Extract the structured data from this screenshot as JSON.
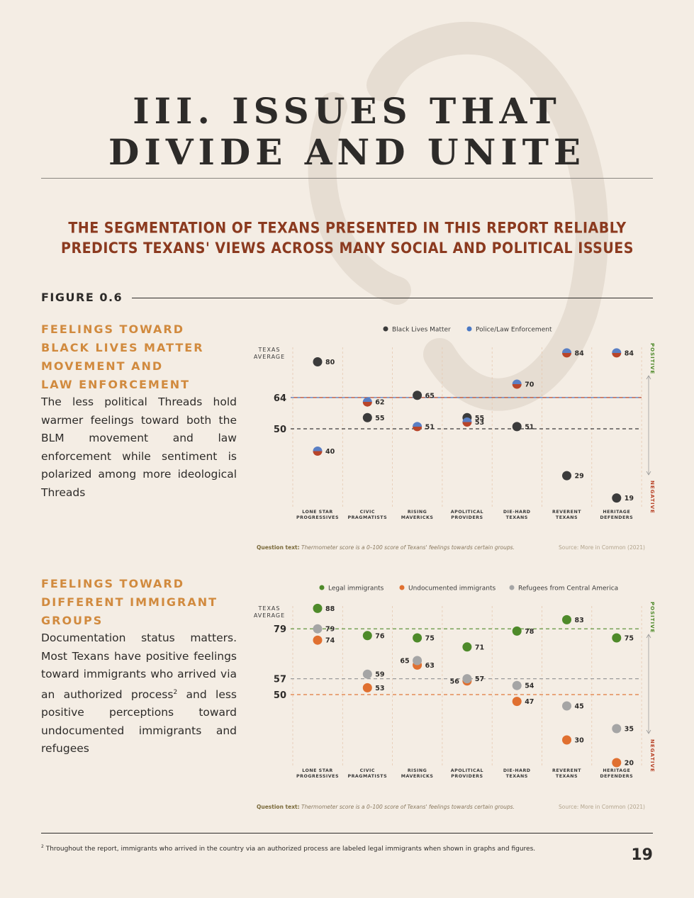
{
  "page": {
    "title_line1": "III. ISSUES THAT",
    "title_line2": "DIVIDE AND UNITE",
    "subtitle": "THE SEGMENTATION OF TEXANS PRESENTED IN THIS REPORT RELIABLY PREDICTS TEXANS' VIEWS ACROSS MANY SOCIAL AND POLITICAL ISSUES",
    "figure_label": "FIGURE 0.6",
    "footnote_marker": "2",
    "footnote": "Throughout the report, immigrants who arrived in the country via an authorized process are labeled legal immigrants when shown in graphs and figures.",
    "page_number": "19"
  },
  "section1": {
    "heading_lines": [
      "FEELINGS TOWARD",
      "BLACK LIVES MATTER",
      "MOVEMENT AND",
      "LAW ENFORCEMENT"
    ],
    "body": "The less political Threads hold warmer feelings toward both the BLM movement and law enforcement while sentiment is polarized among more ideological Threads",
    "question_label": "Question text:",
    "question_text": "Thermometer score is a 0–100 score of Texans' feelings towards certain groups.",
    "source": "Source: More in Common (2021)"
  },
  "section2": {
    "heading_lines": [
      "FEELINGS TOWARD",
      "DIFFERENT IMMIGRANT",
      "GROUPS"
    ],
    "body_part1": "Documentation status matters. Most Texans have positive feelings toward immigrants who arrived via an authorized process",
    "body_sup": "2",
    "body_part2": " and less positive perceptions toward undocumented immigrants and refugees",
    "question_label": "Question text:",
    "question_text": "Thermometer score is a 0–100 score of Texans' feelings towards certain groups.",
    "source": "Source: More in Common (2021)"
  },
  "chart_data": [
    {
      "type": "scatter",
      "title": "",
      "y_axis_caption": [
        "TEXAS",
        "AVERAGE"
      ],
      "ylim": [
        0,
        100
      ],
      "grid": false,
      "legend_position": "top",
      "direction_labels": {
        "positive": "POSITIVE",
        "negative": "NEGATIVE"
      },
      "categories": [
        [
          "LONE STAR",
          "PROGRESSIVES"
        ],
        [
          "CIVIC",
          "PRAGMATISTS"
        ],
        [
          "RISING",
          "MAVERICKS"
        ],
        [
          "APOLITICAL",
          "PROVIDERS"
        ],
        [
          "DIE-HARD",
          "TEXANS"
        ],
        [
          "REVERENT",
          "TEXANS"
        ],
        [
          "HERITAGE",
          "DEFENDERS"
        ]
      ],
      "reference_lines": [
        {
          "value": 64,
          "colors": [
            "#4a78c4",
            "#b8452a"
          ]
        },
        {
          "value": 50,
          "colors": [
            "#3a3a3a"
          ]
        }
      ],
      "series": [
        {
          "name": "Black Lives Matter",
          "color": "#3b3b3b",
          "values": [
            80,
            55,
            65,
            55,
            51,
            29,
            19
          ]
        },
        {
          "name": "Police/Law Enforcement",
          "color": "split-blue-red",
          "values": [
            40,
            62,
            51,
            53,
            70,
            84,
            84
          ]
        }
      ]
    },
    {
      "type": "scatter",
      "title": "",
      "y_axis_caption": [
        "TEXAS",
        "AVERAGE"
      ],
      "ylim": [
        0,
        100
      ],
      "grid": false,
      "legend_position": "top",
      "direction_labels": {
        "positive": "POSITIVE",
        "negative": "NEGATIVE"
      },
      "categories": [
        [
          "LONE STAR",
          "PROGRESSIVES"
        ],
        [
          "CIVIC",
          "PRAGMATISTS"
        ],
        [
          "RISING",
          "MAVERICKS"
        ],
        [
          "APOLITICAL",
          "PROVIDERS"
        ],
        [
          "DIE-HARD",
          "TEXANS"
        ],
        [
          "REVERENT",
          "TEXANS"
        ],
        [
          "HERITAGE",
          "DEFENDERS"
        ]
      ],
      "reference_lines": [
        {
          "value": 79,
          "colors": [
            "#4e8a2a"
          ]
        },
        {
          "value": 57,
          "colors": [
            "#9a9a9a"
          ]
        },
        {
          "value": 50,
          "colors": [
            "#e07a3a"
          ]
        }
      ],
      "series": [
        {
          "name": "Legal immigrants",
          "color": "#4e8a2a",
          "values": [
            88,
            76,
            75,
            71,
            78,
            83,
            75
          ]
        },
        {
          "name": "Undocumented immigrants",
          "color": "#e07030",
          "values": [
            74,
            53,
            63,
            56,
            47,
            30,
            20
          ]
        },
        {
          "name": "Refugees from Central America",
          "color": "#a5a5a5",
          "values": [
            79,
            59,
            65,
            57,
            54,
            45,
            35
          ]
        }
      ]
    }
  ]
}
